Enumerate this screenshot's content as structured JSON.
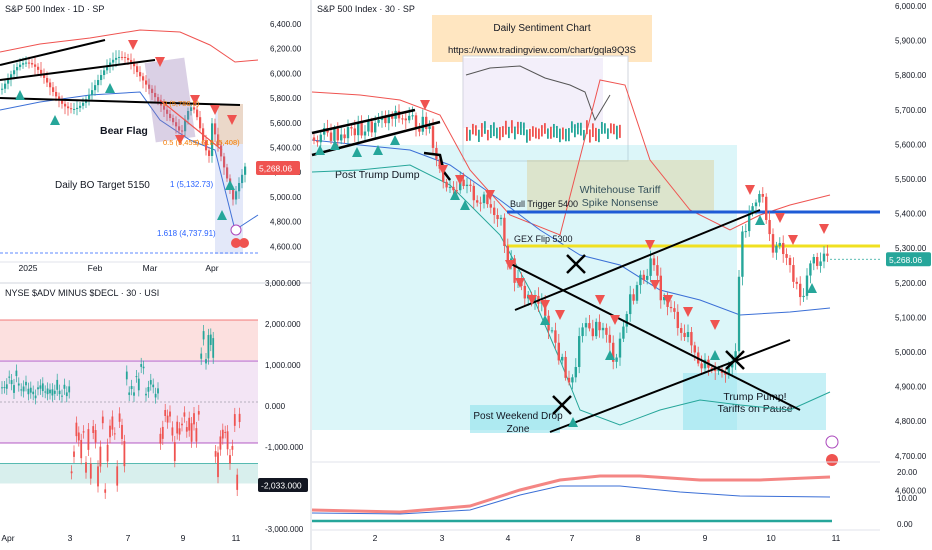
{
  "panel_daily": {
    "title": "S&P 500 Index · 1D · SP",
    "price_axis": [
      "6,400.00",
      "6,200.00",
      "6,000.00",
      "5,800.00",
      "5,600.00",
      "5,400.00",
      "5,200.00",
      "5,000.00",
      "4,800.00",
      "4,600.00"
    ],
    "current_price": "5,268.06",
    "time_labels": [
      "2025",
      "Feb",
      "Mar",
      "Apr"
    ],
    "fib_labels": [
      "1 (5,132.73)",
      "1.618 (4,737.91)",
      "0 (5,786.0)",
      "0.5 (5,459)",
      "0.618 (5,408)"
    ],
    "annotations": {
      "bear_flag": "Bear Flag",
      "bo_target": "Daily BO Target 5150"
    }
  },
  "panel_breadth": {
    "title": "NYSE $ADV MINUS $DECL · 30 · USI",
    "axis": [
      "3,000.000",
      "2,000.000",
      "1,000.000",
      "0.000",
      "-1,000.000",
      "-2,000.000",
      "-3,000.000"
    ],
    "current_value": "-2,033.000",
    "time_labels": [
      "Apr",
      "3",
      "7",
      "9",
      "11"
    ]
  },
  "panel_main": {
    "title": "S&P 500 Index · 30 · SP",
    "price_axis": [
      "6,000.00",
      "5,900.00",
      "5,800.00",
      "5,700.00",
      "5,600.00",
      "5,500.00",
      "5,400.00",
      "5,300.00",
      "5,200.00",
      "5,100.00",
      "5,000.00",
      "4,900.00",
      "4,800.00",
      "4,700.00",
      "4,600.00"
    ],
    "current_price": "5,268.06",
    "time_labels": [
      "2",
      "3",
      "4",
      "7",
      "8",
      "9",
      "10",
      "11"
    ],
    "sub_axis": [
      "20.00",
      "10.00",
      "0.00"
    ],
    "annotations": {
      "sentiment_title": "Daily Sentiment Chart",
      "sentiment_url": "https://www.tradingview.com/chart/gqla9Q3S",
      "post_trump_dump": "Post Trump Dump",
      "whitehouse_line1": "Whitehouse Tariff",
      "whitehouse_line2": "Spike Nonsense",
      "bull_trigger": "Bull Trigger 5400",
      "gex_flip": "GEX Flip 5300",
      "trump_pump_line1": "Trump Pump!",
      "trump_pump_line2": "Tariffs on Pause",
      "post_weekend_line1": "Post Weekend Drop",
      "post_weekend_line2": "Zone"
    }
  },
  "colors": {
    "up": "#26a69a",
    "down": "#ef5350",
    "bull_trigger": "#1e5bd6",
    "gex_flip": "#f0e020",
    "tag_red": "#ef5350",
    "tag_green": "#26a69a",
    "tag_dark": "#131722"
  },
  "chart_data": [
    {
      "type": "line",
      "title": "S&P 500 Index · 1D · SP",
      "x": [
        "2025-01-02",
        "2025-01-15",
        "2025-02-01",
        "2025-02-19",
        "2025-03-01",
        "2025-03-10",
        "2025-03-13",
        "2025-03-25",
        "2025-04-02",
        "2025-04-04",
        "2025-04-08",
        "2025-04-09",
        "2025-04-10"
      ],
      "series": [
        {
          "name": "",
          "values": [
            5870,
            5950,
            6040,
            6144,
            5950,
            5614,
            5521,
            5776,
            5670,
            5074,
            4982,
            5456,
            5268
          ]
        }
      ],
      "ylim": [
        4500,
        6500
      ]
    },
    {
      "type": "line",
      "title": "S&P 500 Index · 30 · SP",
      "x": [
        "Apr 1",
        "Apr 2",
        "Apr 3",
        "Apr 4",
        "Apr 7",
        "Apr 8",
        "Apr 9",
        "Apr 10",
        "Apr 11"
      ],
      "series": [
        {
          "name": "",
          "values": [
            5600,
            5660,
            5400,
            5080,
            5020,
            4990,
            5460,
            5240,
            5268
          ]
        }
      ],
      "ylim": [
        4600,
        6000
      ]
    },
    {
      "type": "bar",
      "title": "NYSE $ADV MINUS $DECL · 30 · USI",
      "categories": [
        "Apr 1",
        "Apr 2",
        "Apr 3",
        "Apr 4",
        "Apr 7",
        "Apr 8",
        "Apr 9",
        "Apr 10",
        "Apr 11"
      ],
      "values": [
        600,
        400,
        -1700,
        -2200,
        -1200,
        300,
        2300,
        -1700,
        -2033
      ],
      "ylim": [
        -3000,
        3000
      ]
    }
  ]
}
